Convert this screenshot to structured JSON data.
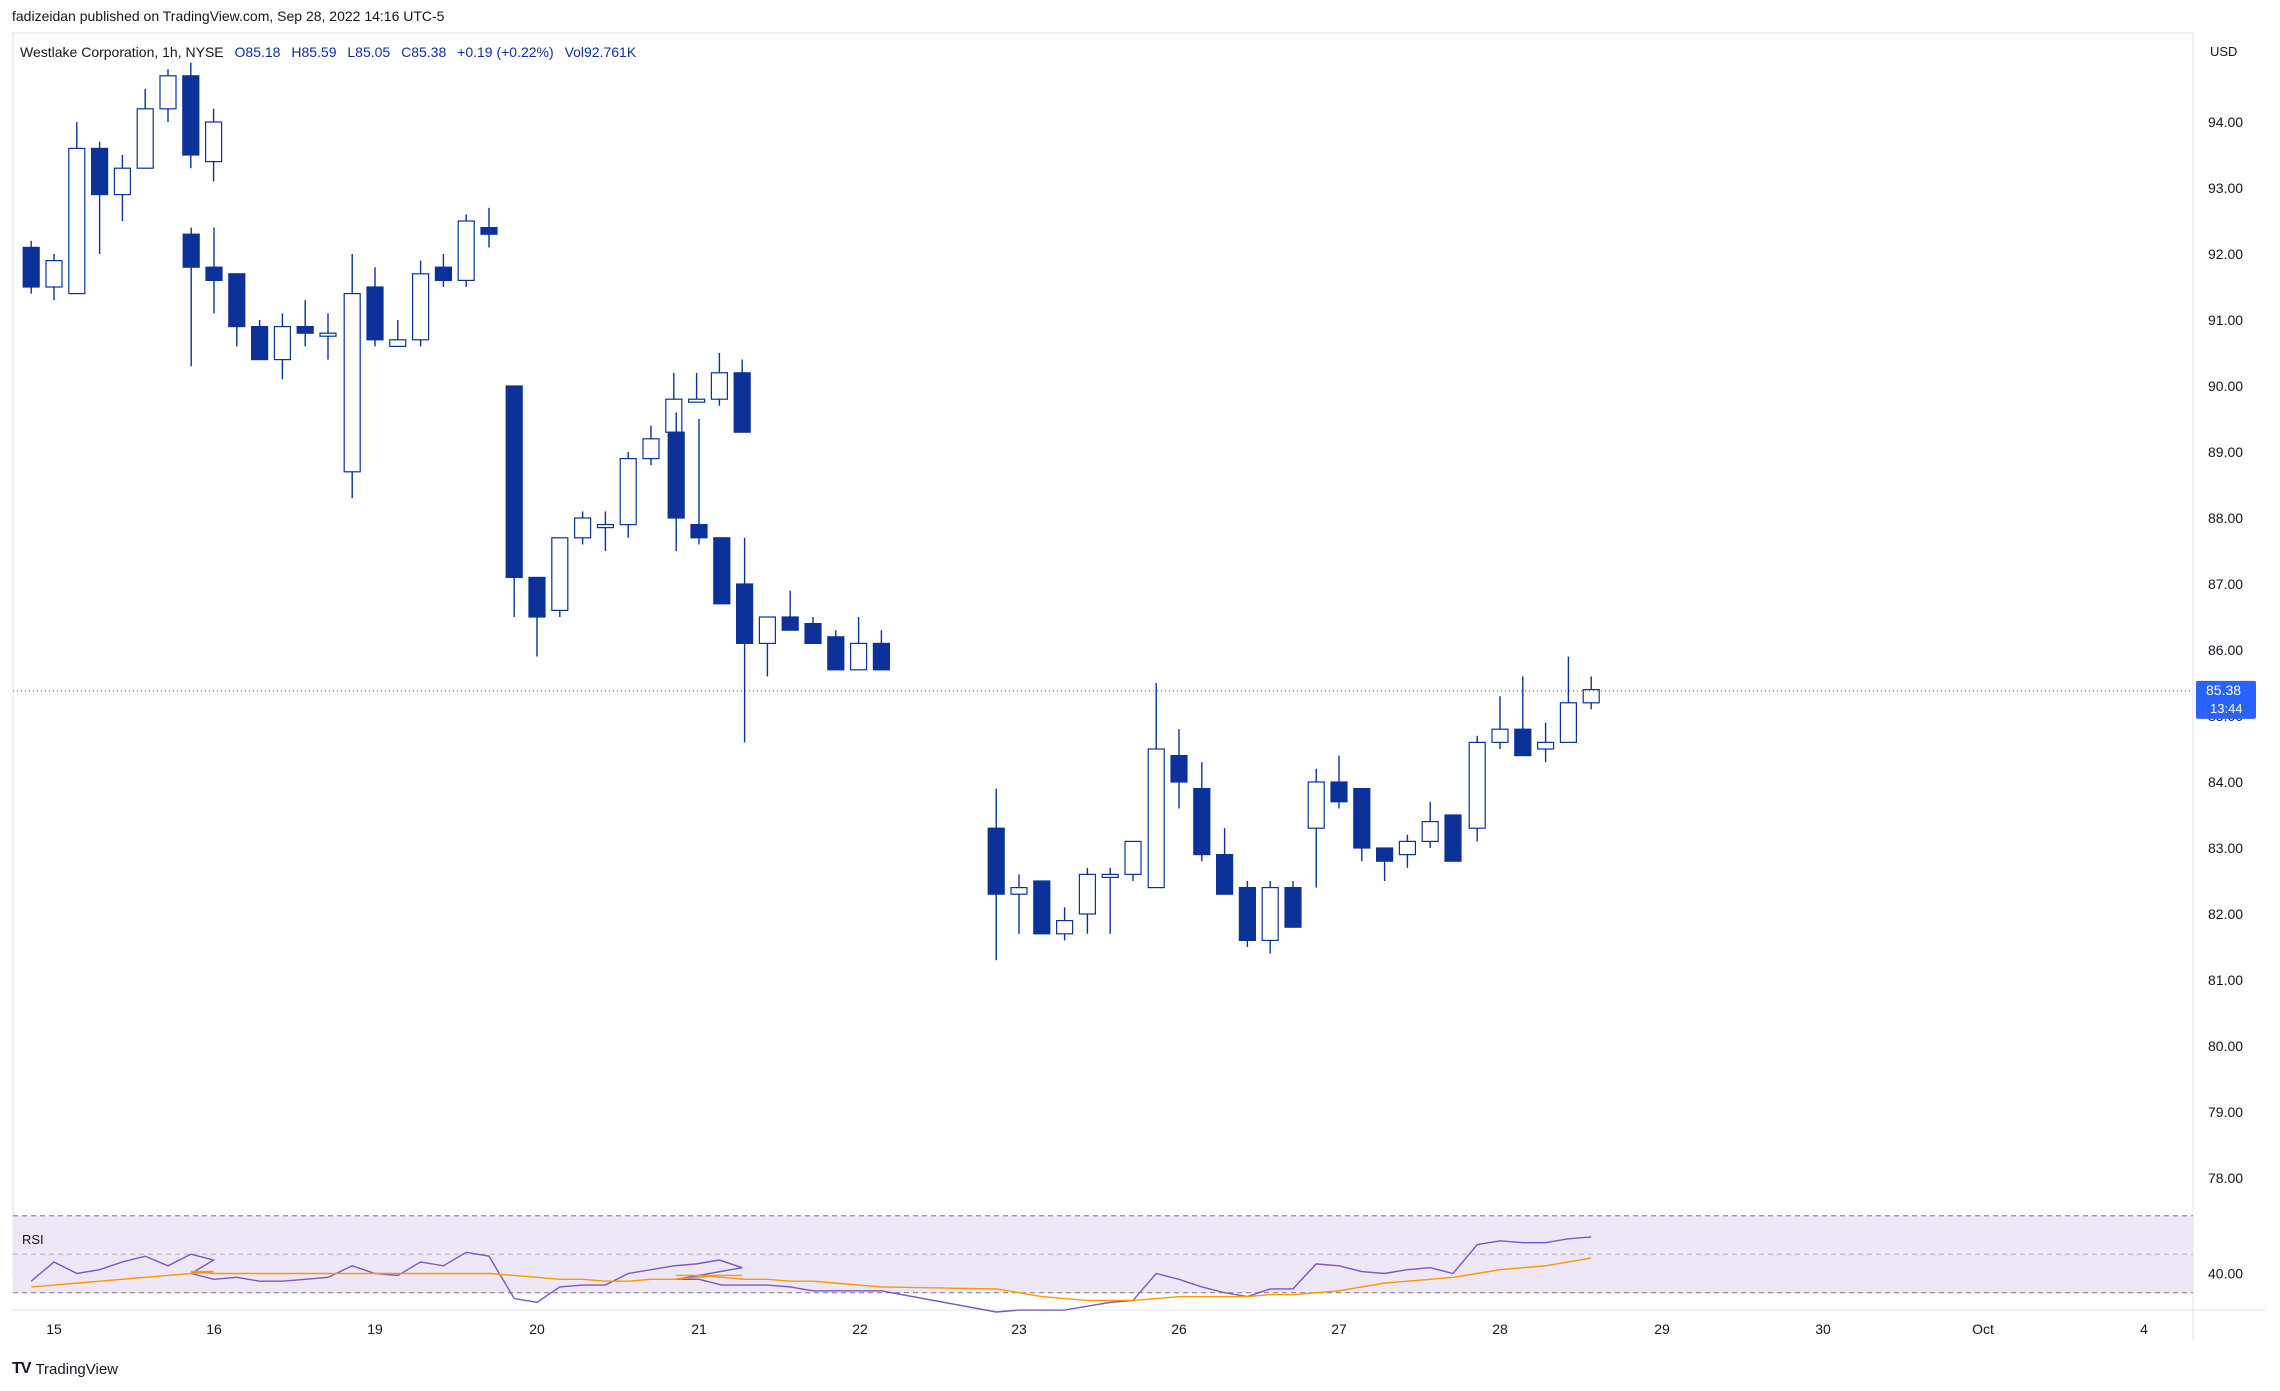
{
  "header": {
    "published": "fadizeidan published on TradingView.com, Sep 28, 2022 14:16 UTC-5"
  },
  "legend": {
    "symbol": "Westlake Corporation, 1h, NYSE",
    "open": "O85.18",
    "high": "H85.59",
    "low": "L85.05",
    "close": "C85.38",
    "change": "+0.19 (+0.22%)",
    "volume": "Vol92.761K"
  },
  "price_axis": {
    "currency": "USD",
    "last_price": "85.38",
    "countdown": "13:44"
  },
  "rsi": {
    "label": "RSI",
    "tick": "40.00"
  },
  "footer": {
    "logo": "TV",
    "brand": "TradingView"
  },
  "colors": {
    "up_fill": "#ffffff",
    "candle": "#0c3299",
    "last_price": "#2962ff",
    "rsi_line": "#7e57c2",
    "rsi_ma": "#ff9800",
    "rsi_band": "#ede7f6"
  },
  "chart_data": {
    "type": "candlestick",
    "title": "Westlake Corporation, 1h, NYSE",
    "ylim": [
      77.3,
      95.5
    ],
    "yticks": [
      94,
      93,
      92,
      91,
      90,
      89,
      88,
      87,
      86,
      85,
      84,
      83,
      82,
      81,
      80,
      79,
      78
    ],
    "xlabels": [
      "15",
      "16",
      "19",
      "20",
      "21",
      "22",
      "23",
      "26",
      "27",
      "28",
      "29",
      "30",
      "Oct",
      "4"
    ],
    "candles": [
      {
        "o": 92.1,
        "h": 92.2,
        "l": 91.4,
        "c": 91.5
      },
      {
        "o": 91.5,
        "h": 92.0,
        "l": 91.3,
        "c": 91.9
      },
      {
        "o": 91.4,
        "h": 94.0,
        "l": 91.4,
        "c": 93.6
      },
      {
        "o": 93.6,
        "h": 93.7,
        "l": 92.0,
        "c": 92.9
      },
      {
        "o": 92.9,
        "h": 93.5,
        "l": 92.5,
        "c": 93.3
      },
      {
        "o": 93.3,
        "h": 94.5,
        "l": 93.3,
        "c": 94.2
      },
      {
        "o": 94.2,
        "h": 94.8,
        "l": 94.0,
        "c": 94.7
      },
      {
        "o": 94.7,
        "h": 94.9,
        "l": 93.3,
        "c": 93.5
      },
      {
        "o": 93.4,
        "h": 94.2,
        "l": 93.1,
        "c": 94.0
      },
      {
        "o": 92.3,
        "h": 92.4,
        "l": 90.3,
        "c": 91.8
      },
      {
        "o": 91.8,
        "h": 92.4,
        "l": 91.1,
        "c": 91.6
      },
      {
        "o": 91.7,
        "h": 91.7,
        "l": 90.6,
        "c": 90.9
      },
      {
        "o": 90.9,
        "h": 91.0,
        "l": 90.4,
        "c": 90.4
      },
      {
        "o": 90.4,
        "h": 91.1,
        "l": 90.1,
        "c": 90.9
      },
      {
        "o": 90.9,
        "h": 91.3,
        "l": 90.6,
        "c": 90.8
      },
      {
        "o": 90.8,
        "h": 91.1,
        "l": 90.4,
        "c": 90.8
      },
      {
        "o": 88.7,
        "h": 92.0,
        "l": 88.3,
        "c": 91.4
      },
      {
        "o": 91.5,
        "h": 91.8,
        "l": 90.6,
        "c": 90.7
      },
      {
        "o": 90.6,
        "h": 91.0,
        "l": 90.6,
        "c": 90.7
      },
      {
        "o": 90.7,
        "h": 91.9,
        "l": 90.6,
        "c": 91.7
      },
      {
        "o": 91.8,
        "h": 92.0,
        "l": 91.5,
        "c": 91.6
      },
      {
        "o": 91.6,
        "h": 92.6,
        "l": 91.5,
        "c": 92.5
      },
      {
        "o": 92.4,
        "h": 92.7,
        "l": 92.1,
        "c": 92.3
      },
      {
        "o": 90.0,
        "h": 90.0,
        "l": 86.5,
        "c": 87.1
      },
      {
        "o": 87.1,
        "h": 87.1,
        "l": 85.9,
        "c": 86.5
      },
      {
        "o": 86.6,
        "h": 87.7,
        "l": 86.5,
        "c": 87.7
      },
      {
        "o": 87.7,
        "h": 88.1,
        "l": 87.6,
        "c": 88.0
      },
      {
        "o": 87.9,
        "h": 88.1,
        "l": 87.5,
        "c": 87.9
      },
      {
        "o": 87.9,
        "h": 89.0,
        "l": 87.7,
        "c": 88.9
      },
      {
        "o": 88.9,
        "h": 89.4,
        "l": 88.8,
        "c": 89.2
      },
      {
        "o": 89.3,
        "h": 90.2,
        "l": 88.8,
        "c": 89.8
      },
      {
        "o": 89.8,
        "h": 90.2,
        "l": 89.8,
        "c": 89.8
      },
      {
        "o": 89.8,
        "h": 90.5,
        "l": 89.7,
        "c": 90.2
      },
      {
        "o": 90.2,
        "h": 90.4,
        "l": 89.3,
        "c": 89.3
      },
      {
        "o": 89.3,
        "h": 89.6,
        "l": 87.5,
        "c": 88.0
      },
      {
        "o": 87.9,
        "h": 89.5,
        "l": 87.6,
        "c": 87.7
      },
      {
        "o": 87.7,
        "h": 87.7,
        "l": 86.7,
        "c": 86.7
      },
      {
        "o": 87.0,
        "h": 87.7,
        "l": 84.6,
        "c": 86.1
      },
      {
        "o": 86.1,
        "h": 86.5,
        "l": 85.6,
        "c": 86.5
      },
      {
        "o": 86.5,
        "h": 86.9,
        "l": 86.3,
        "c": 86.3
      },
      {
        "o": 86.4,
        "h": 86.5,
        "l": 86.1,
        "c": 86.1
      },
      {
        "o": 86.2,
        "h": 86.3,
        "l": 85.7,
        "c": 85.7
      },
      {
        "o": 85.7,
        "h": 86.5,
        "l": 85.7,
        "c": 86.1
      },
      {
        "o": 86.1,
        "h": 86.3,
        "l": 85.7,
        "c": 85.7
      },
      {
        "o": 83.3,
        "h": 83.9,
        "l": 81.3,
        "c": 82.3
      },
      {
        "o": 82.3,
        "h": 82.6,
        "l": 81.7,
        "c": 82.4
      },
      {
        "o": 82.5,
        "h": 82.5,
        "l": 81.7,
        "c": 81.7
      },
      {
        "o": 81.7,
        "h": 82.1,
        "l": 81.6,
        "c": 81.9
      },
      {
        "o": 82.0,
        "h": 82.7,
        "l": 81.7,
        "c": 82.6
      },
      {
        "o": 82.6,
        "h": 82.7,
        "l": 81.7,
        "c": 82.6
      },
      {
        "o": 82.6,
        "h": 83.1,
        "l": 82.5,
        "c": 83.1
      },
      {
        "o": 82.4,
        "h": 85.5,
        "l": 82.4,
        "c": 84.5
      },
      {
        "o": 84.4,
        "h": 84.8,
        "l": 83.6,
        "c": 84.0
      },
      {
        "o": 83.9,
        "h": 84.3,
        "l": 82.8,
        "c": 82.9
      },
      {
        "o": 82.9,
        "h": 83.3,
        "l": 82.3,
        "c": 82.3
      },
      {
        "o": 82.4,
        "h": 82.5,
        "l": 81.5,
        "c": 81.6
      },
      {
        "o": 81.6,
        "h": 82.5,
        "l": 81.4,
        "c": 82.4
      },
      {
        "o": 82.4,
        "h": 82.5,
        "l": 81.8,
        "c": 81.8
      },
      {
        "o": 83.3,
        "h": 84.2,
        "l": 82.4,
        "c": 84.0
      },
      {
        "o": 84.0,
        "h": 84.4,
        "l": 83.6,
        "c": 83.7
      },
      {
        "o": 83.9,
        "h": 83.9,
        "l": 82.8,
        "c": 83.0
      },
      {
        "o": 83.0,
        "h": 83.0,
        "l": 82.5,
        "c": 82.8
      },
      {
        "o": 82.9,
        "h": 83.2,
        "l": 82.7,
        "c": 83.1
      },
      {
        "o": 83.1,
        "h": 83.7,
        "l": 83.0,
        "c": 83.4
      },
      {
        "o": 83.5,
        "h": 83.5,
        "l": 82.8,
        "c": 82.8
      },
      {
        "o": 83.3,
        "h": 84.7,
        "l": 83.1,
        "c": 84.6
      },
      {
        "o": 84.6,
        "h": 85.3,
        "l": 84.5,
        "c": 84.8
      },
      {
        "o": 84.8,
        "h": 85.6,
        "l": 84.5,
        "c": 84.4
      },
      {
        "o": 84.5,
        "h": 84.9,
        "l": 84.3,
        "c": 84.6
      },
      {
        "o": 84.6,
        "h": 85.9,
        "l": 84.6,
        "c": 85.2
      },
      {
        "o": 85.2,
        "h": 85.6,
        "l": 85.1,
        "c": 85.4
      }
    ],
    "rsi": [
      36,
      46,
      40,
      42,
      46,
      49,
      44,
      50,
      47,
      40,
      37,
      38,
      36,
      36,
      37,
      38,
      44,
      40,
      39,
      46,
      44,
      51,
      49,
      27,
      25,
      33,
      34,
      34,
      40,
      42,
      44,
      45,
      47,
      43,
      37,
      37,
      34,
      34,
      34,
      33,
      31,
      31,
      31,
      31,
      20,
      21,
      21,
      21,
      23,
      25,
      26,
      40,
      37,
      33,
      30,
      28,
      32,
      32,
      45,
      44,
      41,
      40,
      42,
      43,
      40,
      55,
      57,
      56,
      56,
      58,
      59
    ],
    "rsi_ma": [
      33,
      34,
      35,
      36,
      37,
      38,
      39,
      40,
      41,
      41,
      40,
      40,
      40,
      40,
      40,
      40,
      40,
      40,
      40,
      40,
      40,
      40,
      40,
      39,
      38,
      37,
      37,
      36,
      36,
      37,
      37,
      38,
      39,
      39,
      39,
      39,
      38,
      37,
      37,
      36,
      36,
      35,
      34,
      33,
      32,
      30,
      28,
      27,
      26,
      26,
      26,
      27,
      28,
      28,
      28,
      28,
      29,
      29,
      30,
      31,
      33,
      35,
      36,
      37,
      38,
      40,
      42,
      43,
      44,
      46,
      48
    ]
  }
}
